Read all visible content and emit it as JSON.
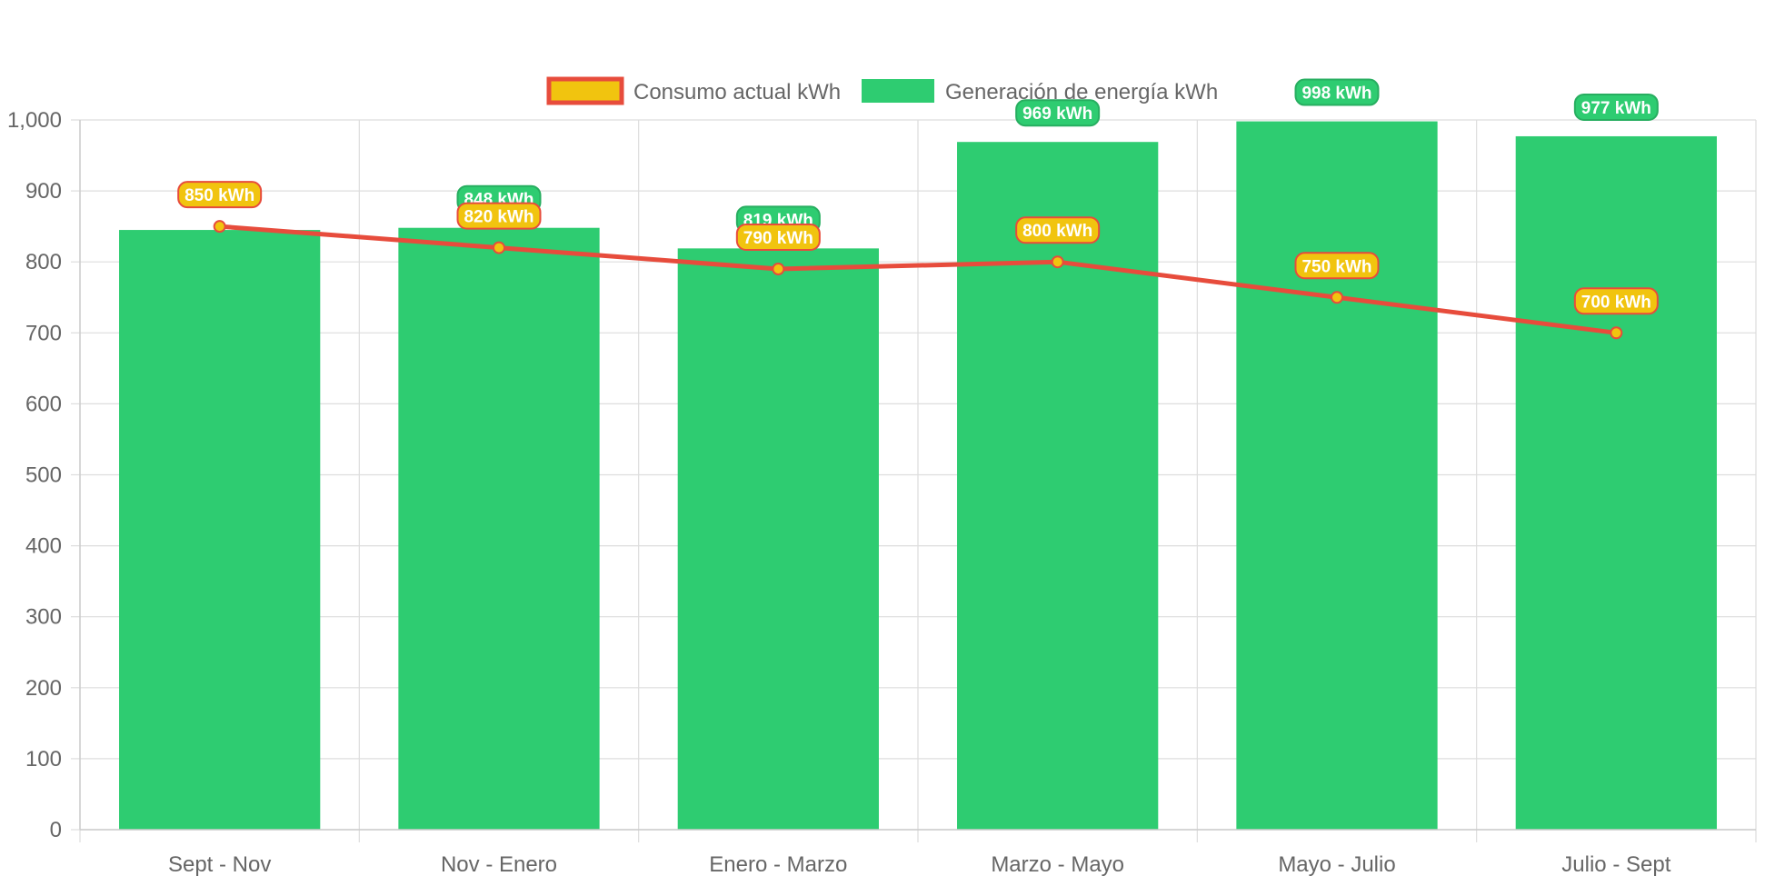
{
  "chart_data": {
    "type": "bar",
    "categories": [
      "Sept - Nov",
      "Nov - Enero",
      "Enero - Marzo",
      "Marzo - Mayo",
      "Mayo - Julio",
      "Julio - Sept"
    ],
    "ylim": [
      0,
      1000
    ],
    "yticks": [
      0,
      100,
      200,
      300,
      400,
      500,
      600,
      700,
      800,
      900,
      1000
    ],
    "ytick_labels": [
      "0",
      "100",
      "200",
      "300",
      "400",
      "500",
      "600",
      "700",
      "800",
      "900",
      "1,000"
    ],
    "grid": true,
    "legend_position": "top-center",
    "unit_suffix": " kWh",
    "series": [
      {
        "name": "Consumo actual kWh",
        "chart_type": "line",
        "values": [
          850,
          820,
          790,
          800,
          750,
          700
        ],
        "line_color": "#e74c3c",
        "point_color": "#f1c40f"
      },
      {
        "name": "Generación de energía kWh",
        "chart_type": "bar",
        "values": [
          845,
          848,
          819,
          969,
          998,
          977
        ],
        "labels": [
          "",
          "848 kWh",
          "819 kWh",
          "969 kWh",
          "998 kWh",
          "977 kWh"
        ],
        "color": "#2ecc71"
      }
    ],
    "line_labels": [
      "850 kWh",
      "820 kWh",
      "790 kWh",
      "800 kWh",
      "750 kWh",
      "700 kWh"
    ]
  }
}
